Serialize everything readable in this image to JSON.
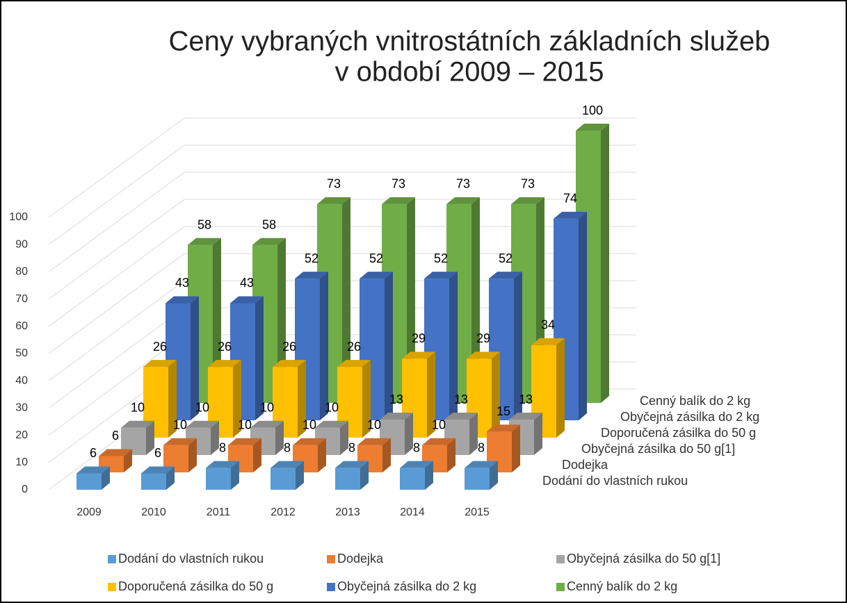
{
  "chart_data": {
    "type": "bar3d",
    "title": [
      "Ceny vybraných vnitrostátních základních služeb",
      "v období 2009 – 2015"
    ],
    "categories": [
      "2009",
      "2010",
      "2011",
      "2012",
      "2013",
      "2014",
      "2015"
    ],
    "series": [
      {
        "name": "Dodání do vlastních rukou",
        "color": "#5b9bd5",
        "values": [
          6,
          6,
          8,
          8,
          8,
          8,
          8
        ]
      },
      {
        "name": "Dodejka",
        "color": "#ed7d31",
        "values": [
          6,
          10,
          10,
          10,
          10,
          10,
          15
        ]
      },
      {
        "name": "Obyčejná zásilka do 50 g[1]",
        "color": "#a5a5a5",
        "values": [
          10,
          10,
          10,
          10,
          13,
          13,
          13
        ]
      },
      {
        "name": "Doporučená zásilka do 50 g",
        "color": "#ffc000",
        "values": [
          26,
          26,
          26,
          26,
          29,
          29,
          34
        ]
      },
      {
        "name": "Obyčejná zásilka do 2 kg",
        "color": "#4472c4",
        "values": [
          43,
          43,
          52,
          52,
          52,
          52,
          74
        ]
      },
      {
        "name": "Cenný balík do 2 kg",
        "color": "#70ad47",
        "values": [
          58,
          58,
          73,
          73,
          73,
          73,
          100
        ]
      }
    ],
    "ylim": [
      0,
      100
    ],
    "yticks": [
      0,
      10,
      20,
      30,
      40,
      50,
      60,
      70,
      80,
      90,
      100
    ],
    "grid": true,
    "legend": "bottom"
  }
}
